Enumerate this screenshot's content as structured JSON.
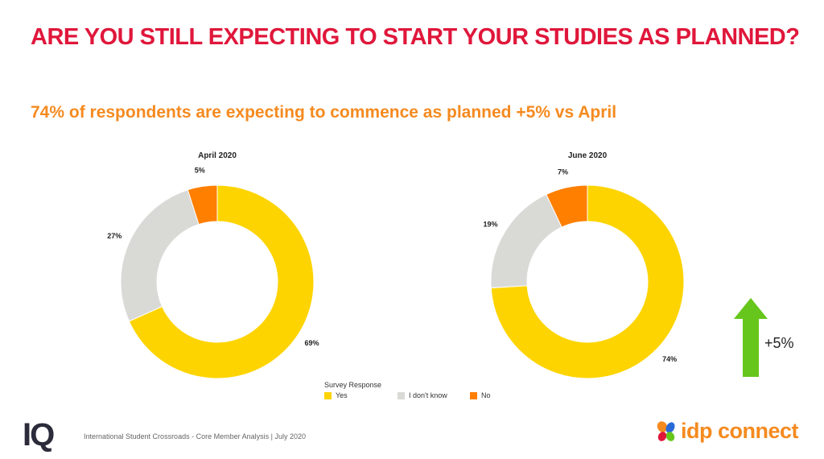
{
  "title": "ARE YOU STILL EXPECTING TO START YOUR STUDIES AS PLANNED?",
  "subtitle": "74% of respondents are expecting to commence as planned +5% vs April",
  "colors": {
    "title": "#e0173b",
    "subtitle": "#f58a1f",
    "yes": "#fdd400",
    "dont_know": "#d9d9d6",
    "no": "#ff7f00",
    "arrow": "#66c61c"
  },
  "chart_data": [
    {
      "type": "pie",
      "title": "April 2020",
      "categories": [
        "Yes",
        "I don't know",
        "No"
      ],
      "values": [
        69,
        27,
        5
      ],
      "labels": [
        "69%",
        "27%",
        "5%"
      ],
      "colors": [
        "#fdd400",
        "#d9d9d6",
        "#ff7f00"
      ]
    },
    {
      "type": "pie",
      "title": "June 2020",
      "categories": [
        "Yes",
        "I don't know",
        "No"
      ],
      "values": [
        74,
        19,
        7
      ],
      "labels": [
        "74%",
        "19%",
        "7%"
      ],
      "colors": [
        "#fdd400",
        "#d9d9d6",
        "#ff7f00"
      ]
    }
  ],
  "legend": {
    "title": "Survey Response",
    "items": [
      {
        "label": "Yes",
        "color": "#fdd400"
      },
      {
        "label": "I don't know",
        "color": "#d9d9d6"
      },
      {
        "label": "No",
        "color": "#ff7f00"
      }
    ]
  },
  "change_indicator": {
    "label": "+5%",
    "icon": "up-arrow-icon"
  },
  "footer": {
    "iq_logo": "IQ",
    "text": "International Student Crossroads - Core Member Analysis | July 2020",
    "brand": "idp connect"
  }
}
